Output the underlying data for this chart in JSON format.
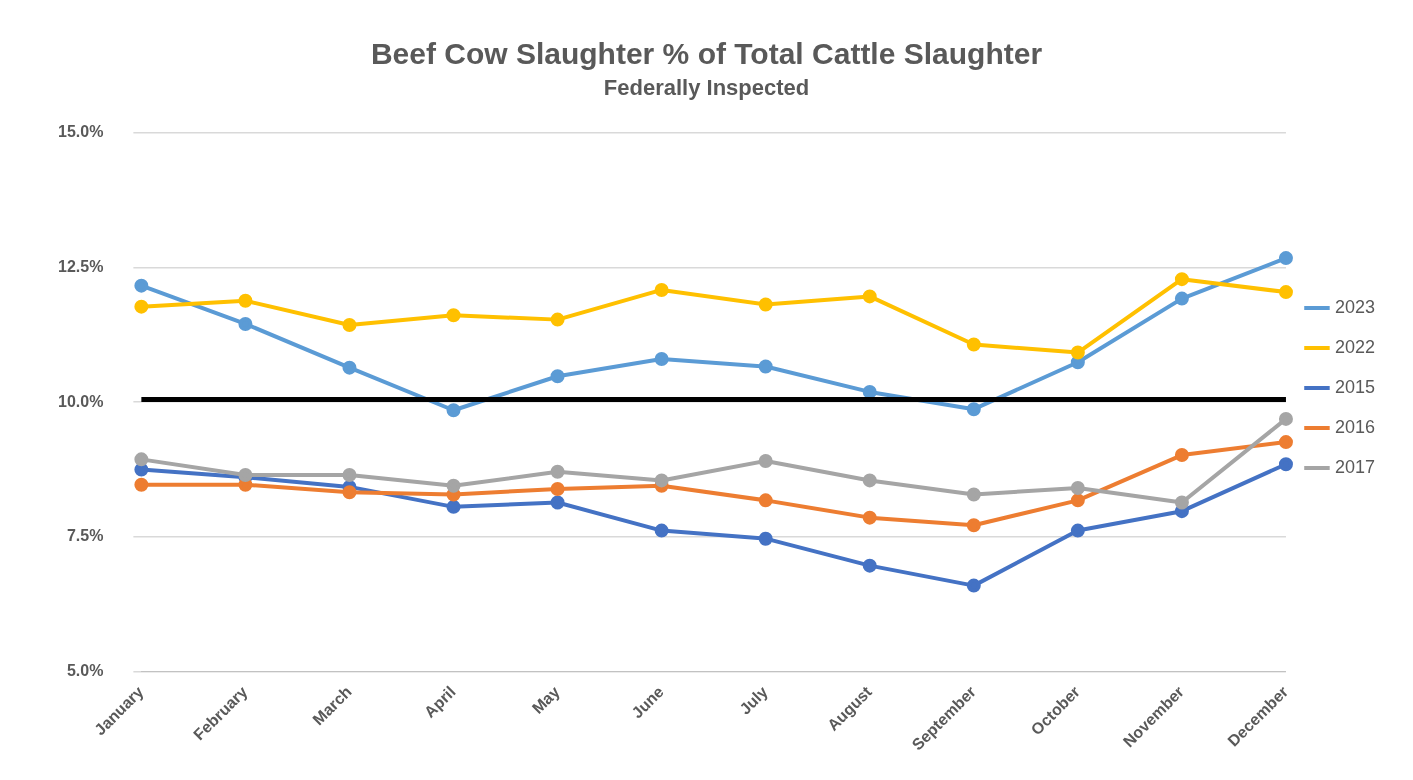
{
  "chart_data": {
    "type": "line",
    "title": "Beef Cow Slaughter % of Total Cattle Slaughter",
    "subtitle": "Federally Inspected",
    "categories": [
      "January",
      "February",
      "March",
      "April",
      "May",
      "June",
      "July",
      "August",
      "September",
      "October",
      "November",
      "December"
    ],
    "series": [
      {
        "name": "2023",
        "color": "#5b9bd5",
        "values": [
          12.16,
          11.45,
          10.64,
          9.85,
          10.48,
          10.8,
          10.66,
          10.19,
          9.87,
          10.74,
          11.92,
          12.67
        ]
      },
      {
        "name": "2022",
        "color": "#ffc000",
        "values": [
          11.77,
          11.88,
          11.43,
          11.61,
          11.53,
          12.08,
          11.81,
          11.96,
          11.07,
          10.92,
          12.28,
          12.04
        ]
      },
      {
        "name": "2015",
        "color": "#4472c4",
        "values": [
          8.75,
          8.61,
          8.43,
          8.06,
          8.14,
          7.62,
          7.47,
          6.97,
          6.6,
          7.62,
          7.98,
          8.85
        ]
      },
      {
        "name": "2016",
        "color": "#ed7d31",
        "values": [
          8.47,
          8.47,
          8.33,
          8.29,
          8.39,
          8.45,
          8.18,
          7.86,
          7.72,
          8.18,
          9.02,
          9.26
        ]
      },
      {
        "name": "2017",
        "color": "#a5a5a5",
        "values": [
          8.94,
          8.65,
          8.65,
          8.45,
          8.71,
          8.55,
          8.91,
          8.55,
          8.29,
          8.41,
          8.14,
          9.69
        ]
      }
    ],
    "ylim": [
      5,
      15
    ],
    "yticks": [
      {
        "value": 5,
        "label": "5.0%"
      },
      {
        "value": 7.5,
        "label": "7.5%"
      },
      {
        "value": 10,
        "label": "10.0%"
      },
      {
        "value": 12.5,
        "label": "12.5%"
      },
      {
        "value": 15,
        "label": "15.0%"
      }
    ],
    "ref_lines": [
      {
        "axis": "y",
        "value": 10.05,
        "color": "#000000"
      }
    ],
    "grid": "y",
    "legend": "right",
    "marker": "circle",
    "line_style": "solid"
  }
}
